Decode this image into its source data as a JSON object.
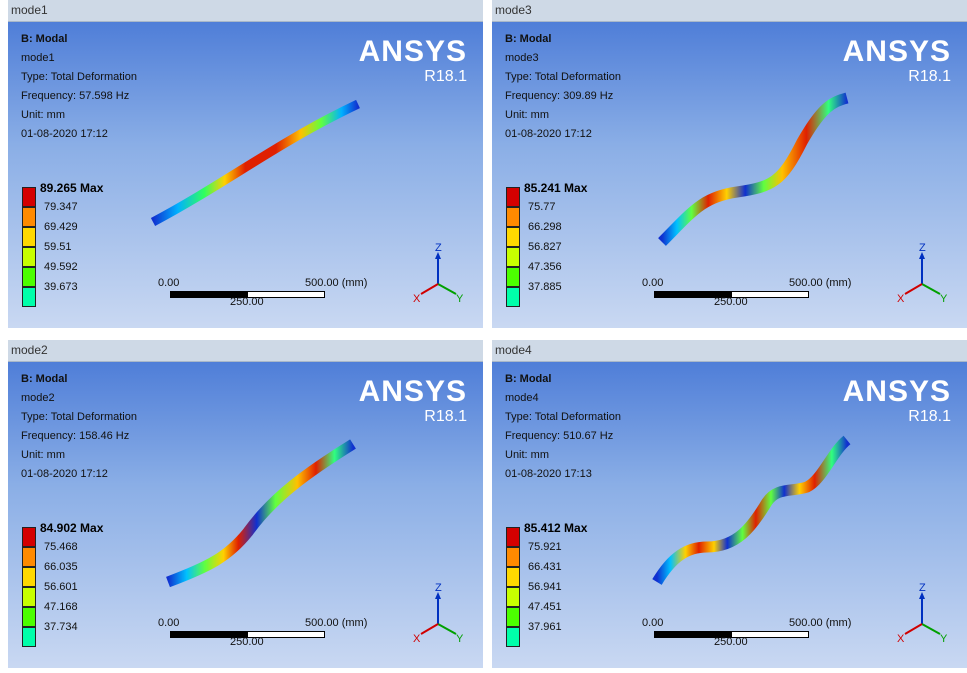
{
  "panes": [
    {
      "tab": "mode1",
      "analysis": "B: Modal",
      "mode": "mode1",
      "type": "Type: Total Deformation",
      "frequency": "Frequency: 57.598 Hz",
      "unit": "Unit: mm",
      "datetime": "01-08-2020 17:12",
      "max": "89.265 Max",
      "levels": [
        "79.347",
        "69.429",
        "59.51",
        "49.592",
        "39.673"
      ]
    },
    {
      "tab": "mode3",
      "analysis": "B: Modal",
      "mode": "mode3",
      "type": "Type: Total Deformation",
      "frequency": "Frequency: 309.89 Hz",
      "unit": "Unit: mm",
      "datetime": "01-08-2020 17:12",
      "max": "85.241 Max",
      "levels": [
        "75.77",
        "66.298",
        "56.827",
        "47.356",
        "37.885"
      ]
    },
    {
      "tab": "mode2",
      "analysis": "B: Modal",
      "mode": "mode2",
      "type": "Type: Total Deformation",
      "frequency": "Frequency: 158.46 Hz",
      "unit": "Unit: mm",
      "datetime": "01-08-2020 17:12",
      "max": "84.902 Max",
      "levels": [
        "75.468",
        "66.035",
        "56.601",
        "47.168",
        "37.734"
      ]
    },
    {
      "tab": "mode4",
      "analysis": "B: Modal",
      "mode": "mode4",
      "type": "Type: Total Deformation",
      "frequency": "Frequency: 510.67 Hz",
      "unit": "Unit: mm",
      "datetime": "01-08-2020 17:13",
      "max": "85.412 Max",
      "levels": [
        "75.921",
        "66.431",
        "56.941",
        "47.451",
        "37.961"
      ]
    }
  ],
  "logo": {
    "brand": "ANSYS",
    "version": "R18.1"
  },
  "scale": {
    "zero": "0.00",
    "end": "500.00 (mm)",
    "mid": "250.00"
  },
  "triad": {
    "z": "Z",
    "y": "Y",
    "x": "X"
  },
  "legend_colors": [
    "#d40000",
    "#ff8a00",
    "#ffd800",
    "#c8ff00",
    "#4cff00",
    "#00ffaa"
  ]
}
